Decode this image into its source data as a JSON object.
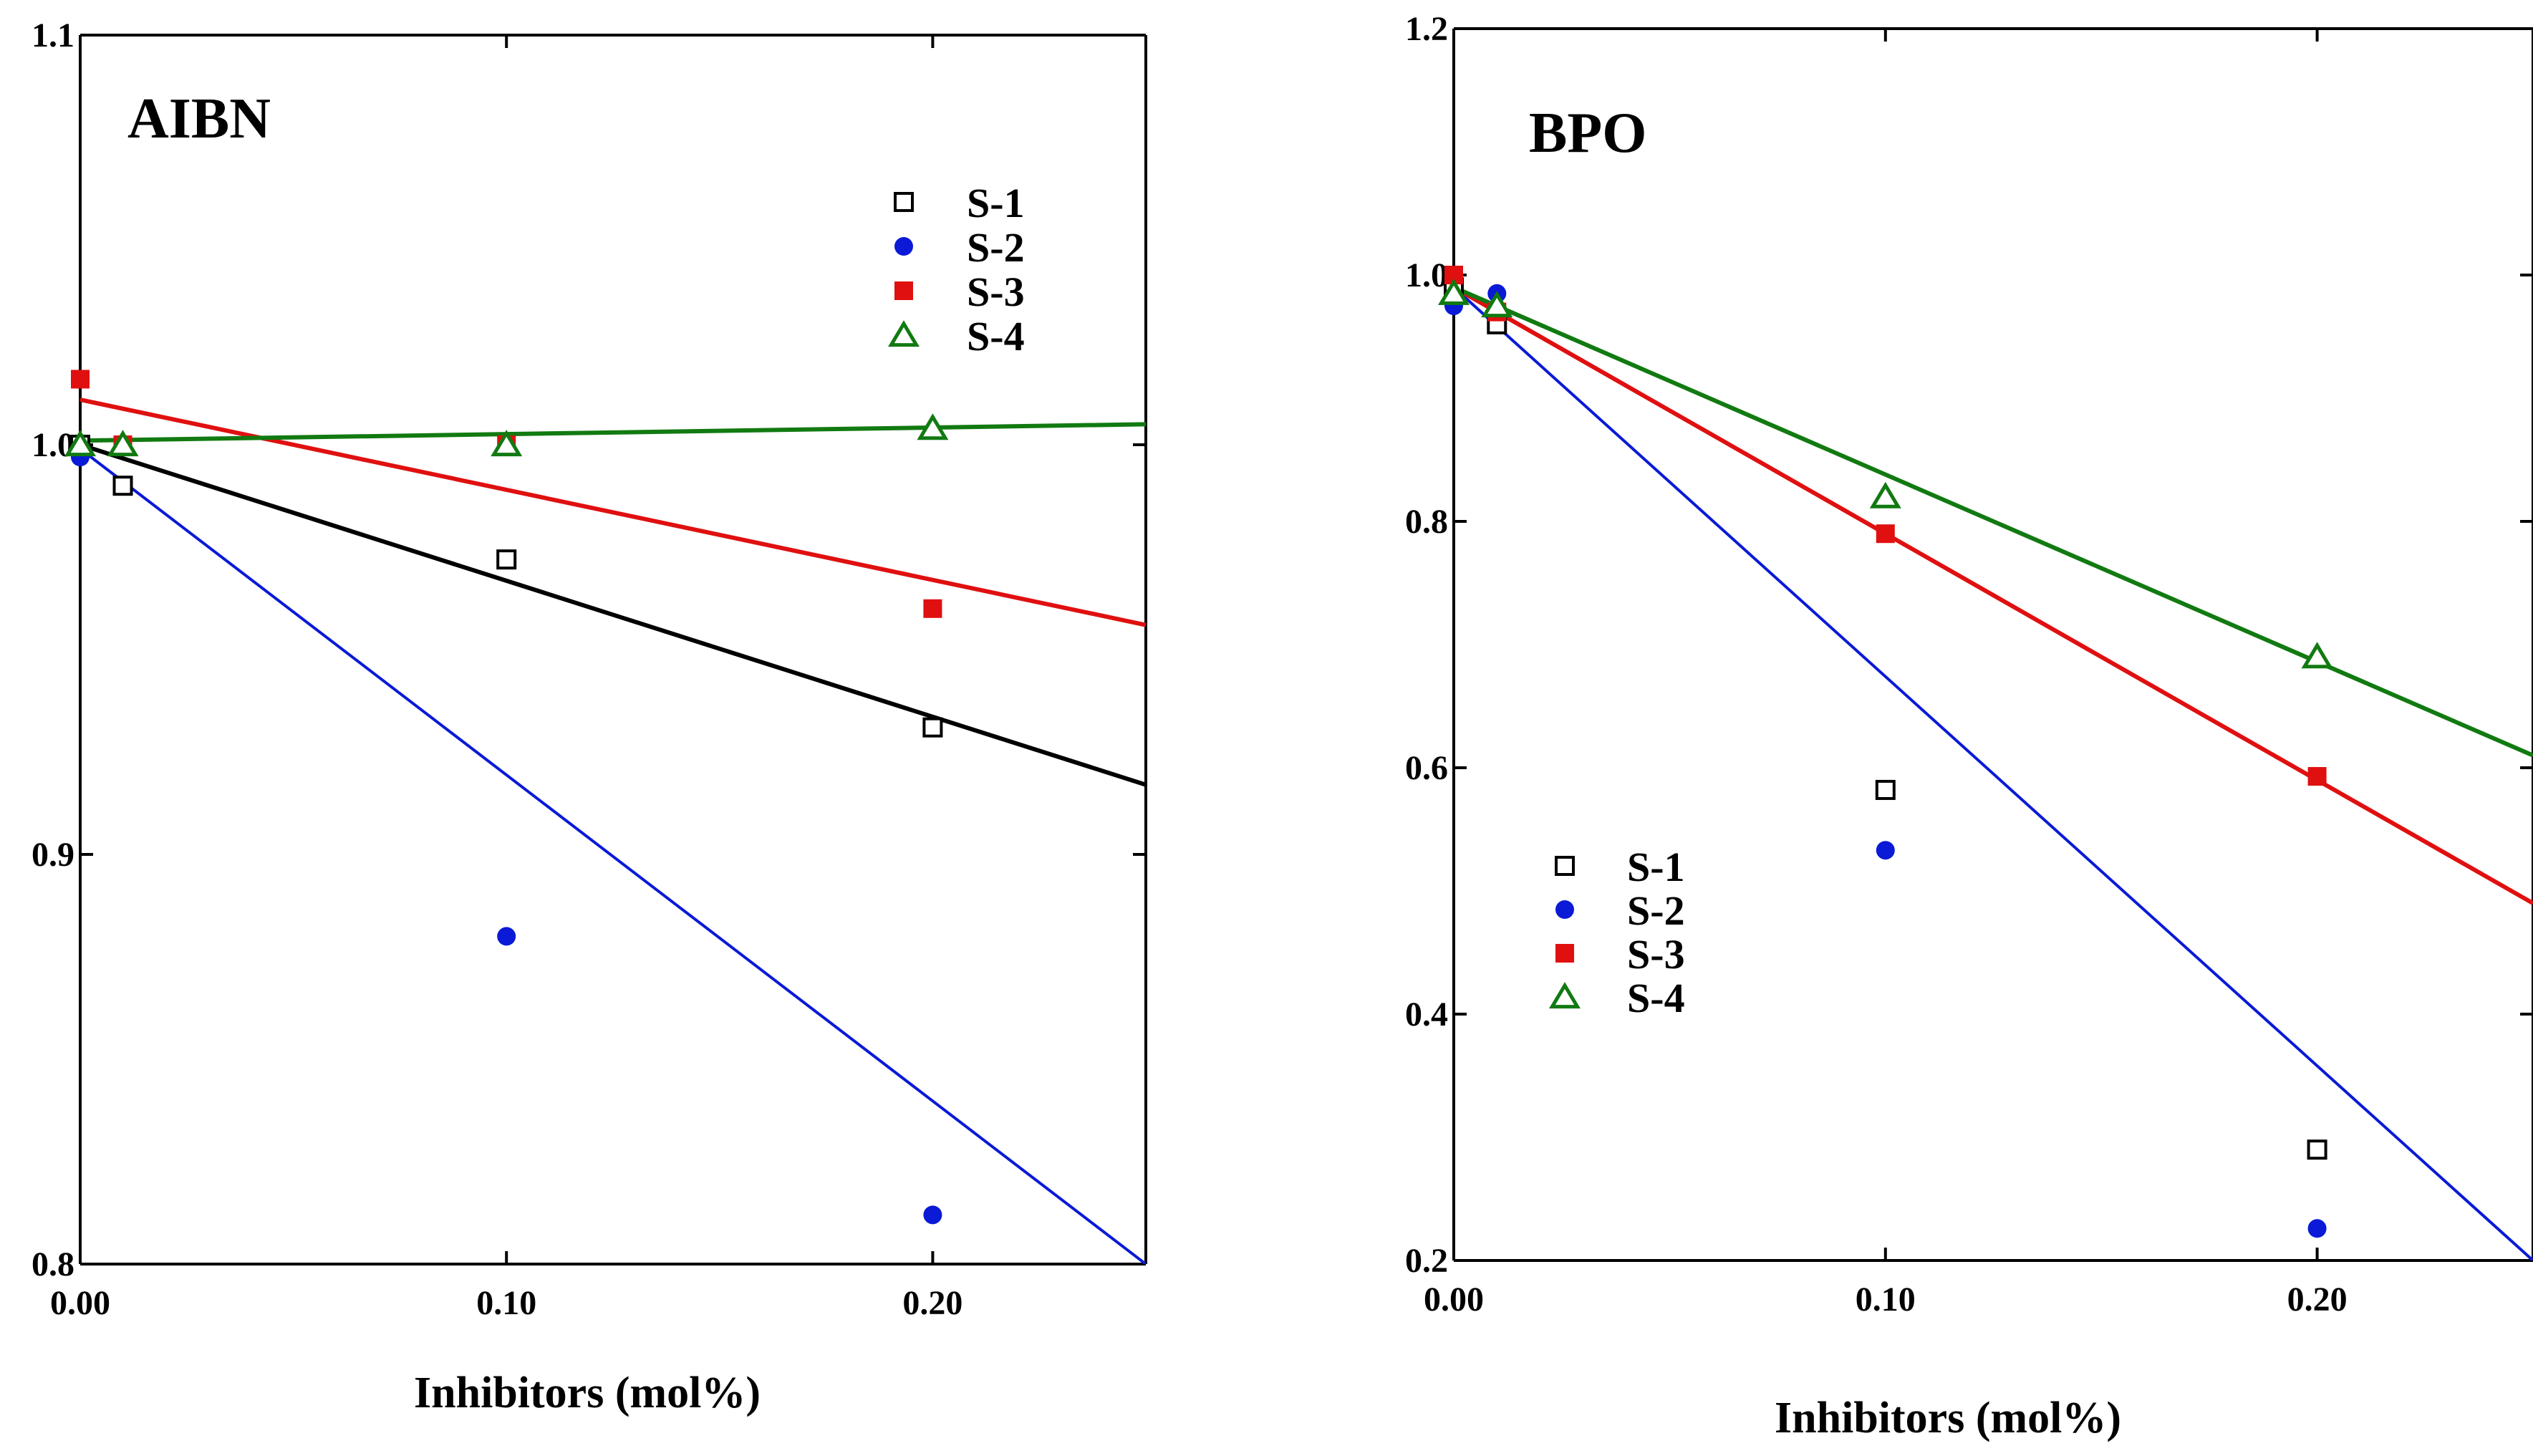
{
  "chart_data": [
    {
      "type": "scatter",
      "title": "AIBN",
      "xlabel": "Inhibitors (mol%)",
      "ylabel": "",
      "xlim": [
        0.0,
        0.25
      ],
      "ylim": [
        0.8,
        1.1
      ],
      "xticks": [
        0.0,
        0.1,
        0.2
      ],
      "xtick_labels": [
        "0.00",
        "0.10",
        "0.20"
      ],
      "yticks": [
        0.8,
        0.9,
        1.0,
        1.1
      ],
      "ytick_labels": [
        "0.8",
        "0.9",
        "1.0",
        "1.1"
      ],
      "legend_position": "upper-right",
      "series": [
        {
          "name": "S-1",
          "marker": "open-square",
          "color": "#000000",
          "x": [
            0.0,
            0.01,
            0.1,
            0.2
          ],
          "y": [
            1.0,
            0.99,
            0.972,
            0.931
          ],
          "fit": {
            "x": [
              0.0,
              0.25
            ],
            "y": [
              1.0,
              0.917
            ]
          }
        },
        {
          "name": "S-2",
          "marker": "filled-circle",
          "color": "#0a1ad6",
          "x": [
            0.0,
            0.1,
            0.2
          ],
          "y": [
            0.997,
            0.88,
            0.812
          ],
          "fit": {
            "x": [
              0.0,
              0.25
            ],
            "y": [
              0.999,
              0.8
            ]
          }
        },
        {
          "name": "S-3",
          "marker": "filled-square",
          "color": "#e01010",
          "x": [
            0.0,
            0.01,
            0.1,
            0.2
          ],
          "y": [
            1.016,
            1.0,
            1.0,
            0.96
          ],
          "fit": {
            "x": [
              0.0,
              0.25
            ],
            "y": [
              1.011,
              0.956
            ]
          }
        },
        {
          "name": "S-4",
          "marker": "open-triangle",
          "color": "#117a11",
          "x": [
            0.0,
            0.01,
            0.1,
            0.2
          ],
          "y": [
            1.0,
            1.0,
            1.0,
            1.004
          ],
          "fit": {
            "x": [
              0.0,
              0.25
            ],
            "y": [
              1.001,
              1.005
            ]
          }
        }
      ]
    },
    {
      "type": "scatter",
      "title": "BPO",
      "xlabel": "Inhibitors (mol%)",
      "ylabel": "",
      "xlim": [
        0.0,
        0.25
      ],
      "ylim": [
        0.2,
        1.2
      ],
      "xticks": [
        0.0,
        0.1,
        0.2
      ],
      "xtick_labels": [
        "0.00",
        "0.10",
        "0.20"
      ],
      "yticks": [
        0.2,
        0.4,
        0.6,
        0.8,
        1.0,
        1.2
      ],
      "ytick_labels": [
        "0.2",
        "0.4",
        "0.6",
        "0.8",
        "1.0",
        "1.2"
      ],
      "legend_position": "lower-left",
      "series": [
        {
          "name": "S-1",
          "marker": "open-square",
          "color": "#000000",
          "x": [
            0.0,
            0.01,
            0.1,
            0.2
          ],
          "y": [
            0.99,
            0.96,
            0.582,
            0.29
          ],
          "fit": null
        },
        {
          "name": "S-2",
          "marker": "filled-circle",
          "color": "#0a1ad6",
          "x": [
            0.0,
            0.01,
            0.1,
            0.2
          ],
          "y": [
            0.975,
            0.985,
            0.533,
            0.226
          ],
          "fit": {
            "x": [
              0.0,
              0.25
            ],
            "y": [
              0.99,
              0.2
            ]
          }
        },
        {
          "name": "S-3",
          "marker": "filled-square",
          "color": "#e01010",
          "x": [
            0.0,
            0.01,
            0.1,
            0.2
          ],
          "y": [
            1.0,
            0.97,
            0.79,
            0.593
          ],
          "fit": {
            "x": [
              0.0,
              0.25
            ],
            "y": [
              0.99,
              0.49
            ]
          }
        },
        {
          "name": "S-4",
          "marker": "open-triangle",
          "color": "#117a11",
          "x": [
            0.0,
            0.01,
            0.1,
            0.2
          ],
          "y": [
            0.985,
            0.975,
            0.82,
            0.69
          ],
          "fit": {
            "x": [
              0.0,
              0.25
            ],
            "y": [
              0.99,
              0.61
            ]
          }
        }
      ]
    }
  ]
}
